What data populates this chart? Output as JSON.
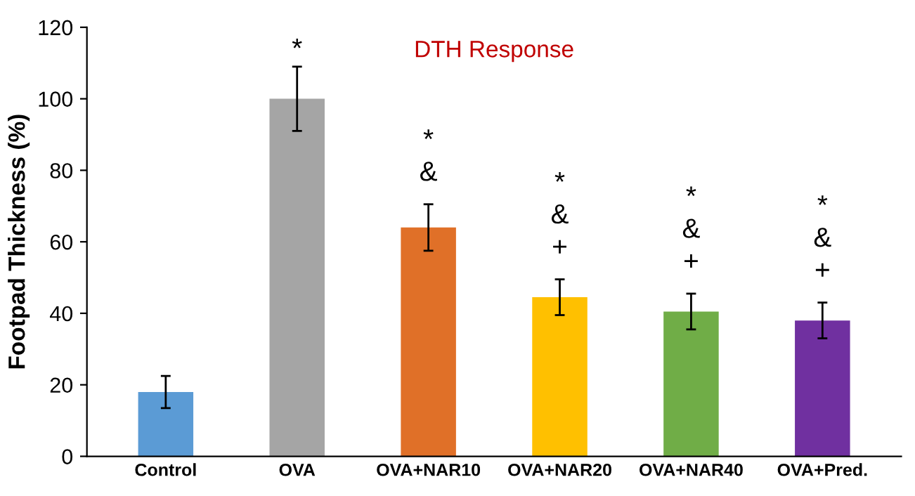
{
  "chart_data": {
    "type": "bar",
    "title": "DTH Response",
    "ylabel": "Footpad Thickness (%)",
    "categories": [
      "Control",
      "OVA",
      "OVA+NAR10",
      "OVA+NAR20",
      "OVA+NAR40",
      "OVA+Pred."
    ],
    "values": [
      18,
      100,
      64,
      44.5,
      40.5,
      38
    ],
    "errors": [
      4.5,
      9,
      6.5,
      5,
      5,
      5
    ],
    "colors": [
      "#5b9bd5",
      "#a5a5a5",
      "#e07028",
      "#ffc000",
      "#70ad47",
      "#7030a0"
    ],
    "ylim": [
      0,
      120
    ],
    "yticks": [
      0,
      20,
      40,
      60,
      80,
      100,
      120
    ],
    "grid": false,
    "annotations": [
      null,
      "*",
      "*\n&",
      "*\n&\n+",
      "*\n&\n+",
      "*\n&\n+"
    ]
  }
}
